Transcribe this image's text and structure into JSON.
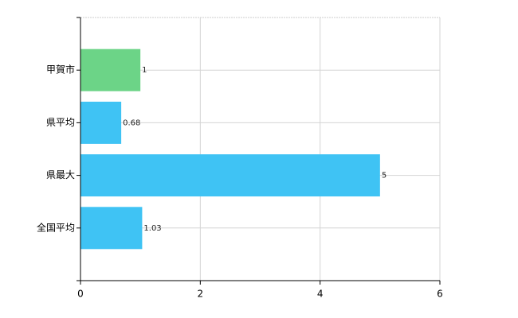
{
  "chart_data": {
    "type": "hbar",
    "categories": [
      "甲賀市",
      "県平均",
      "県最大",
      "全国平均"
    ],
    "values": [
      1,
      0.68,
      5,
      1.03
    ],
    "colors": [
      "#6cd487",
      "#3fc3f4",
      "#3fc3f4",
      "#3fc3f4"
    ],
    "xlim": [
      0,
      6
    ],
    "xticks": [
      0,
      2,
      4,
      6
    ],
    "grid": true
  }
}
